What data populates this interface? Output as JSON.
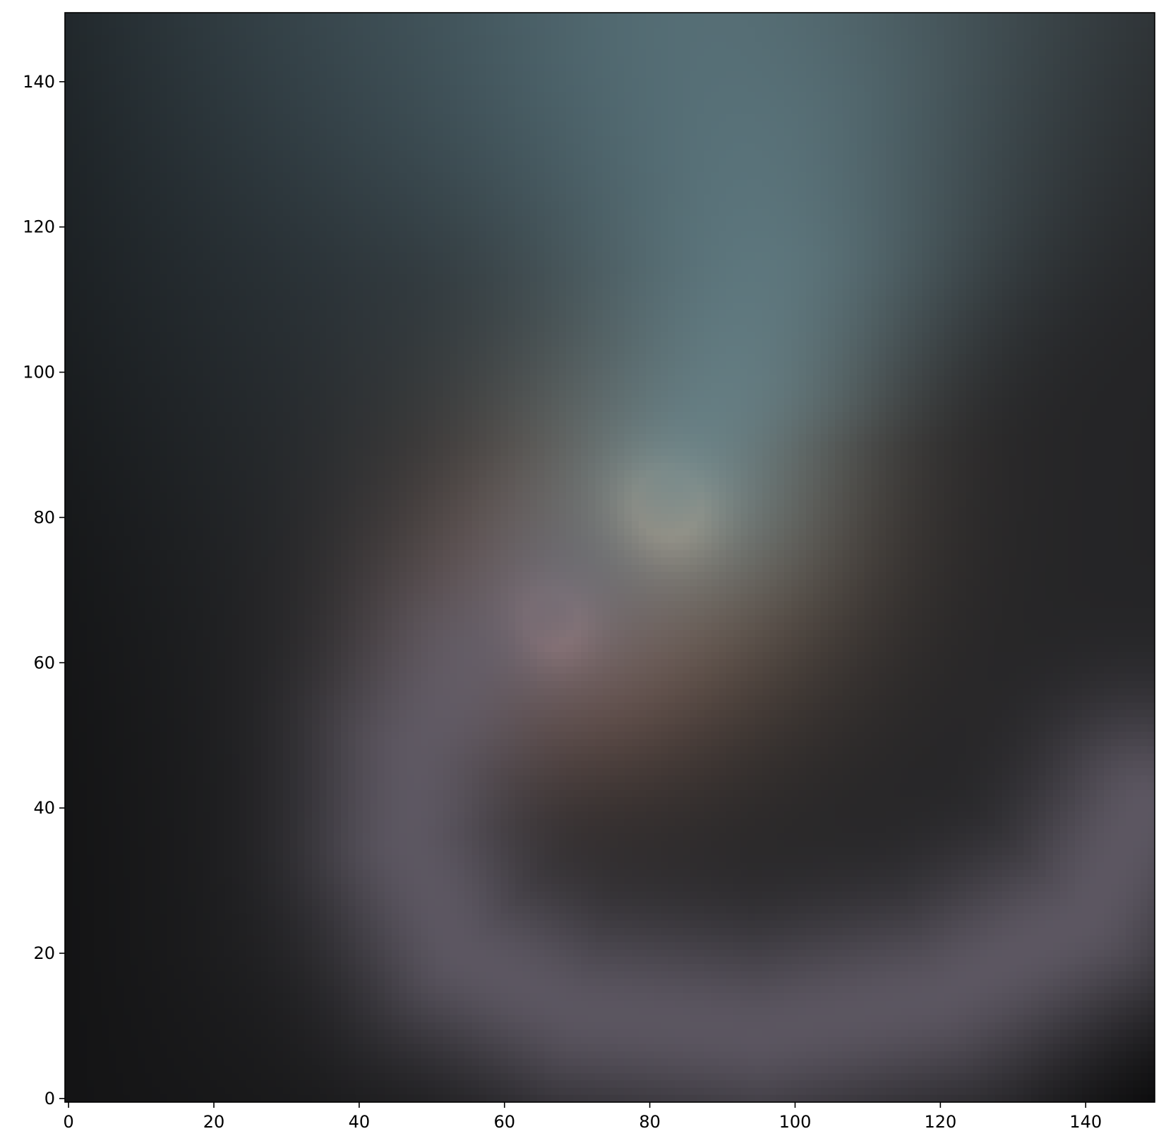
{
  "chart_data": {
    "type": "heatmap",
    "title": "",
    "xlabel": "",
    "ylabel": "",
    "xlim": [
      -0.5,
      149.5
    ],
    "ylim": [
      -0.5,
      149.5
    ],
    "origin": "lower",
    "grid": false,
    "legend": "none",
    "x_ticks": [
      0,
      20,
      40,
      60,
      80,
      100,
      120,
      140
    ],
    "y_ticks": [
      0,
      20,
      40,
      60,
      80,
      100,
      120,
      140
    ],
    "x_tick_labels": [
      "0",
      "20",
      "40",
      "60",
      "80",
      "100",
      "120",
      "140"
    ],
    "y_tick_labels": [
      "0",
      "20",
      "40",
      "60",
      "80",
      "100",
      "120",
      "140"
    ],
    "image": {
      "description_of_features": "rgb image (150x150 pixels)",
      "background_color": "#242426",
      "features": [
        {
          "kind": "bright-core",
          "center": [
            82.5,
            82.0
          ],
          "radius": 5,
          "color": "#ffb57a"
        },
        {
          "kind": "secondary-core",
          "center": [
            66.5,
            66.0
          ],
          "radius": 4,
          "color": "#d69282"
        },
        {
          "kind": "spiral-arm",
          "points": [
            [
              66,
              68
            ],
            [
              55,
              60
            ],
            [
              48,
              48
            ],
            [
              47,
              35
            ],
            [
              54,
              20
            ],
            [
              70,
              12
            ],
            [
              95,
              9
            ],
            [
              120,
              14
            ],
            [
              140,
              25
            ],
            [
              148,
              40
            ]
          ],
          "width": 10,
          "color": "#6a6370"
        },
        {
          "kind": "plume",
          "points": [
            [
              85,
              88
            ],
            [
              90,
              100
            ],
            [
              92,
              115
            ],
            [
              88,
              130
            ],
            [
              80,
              145
            ]
          ],
          "width": 14,
          "color": "#6f9098"
        },
        {
          "kind": "haze",
          "center": [
            40,
            140
          ],
          "radius": 40,
          "color": "#33444c"
        }
      ]
    }
  },
  "colors": {
    "axis": "#000000",
    "figure_background": "#ffffff"
  }
}
